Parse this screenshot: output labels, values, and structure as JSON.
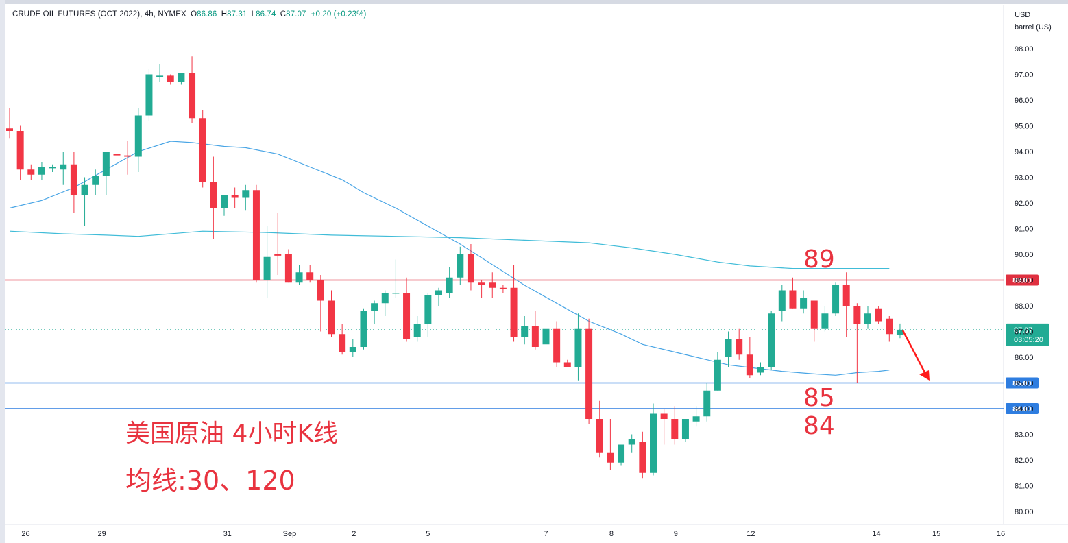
{
  "header": {
    "symbol": "CRUDE OIL FUTURES (OCT 2022), 4h, NYMEX",
    "o_label": "O",
    "o": "86.86",
    "h_label": "H",
    "h": "87.31",
    "l_label": "L",
    "l": "86.74",
    "c_label": "C",
    "c": "87.07",
    "change": "+0.20 (+0.23%)"
  },
  "axis_unit": {
    "currency": "USD",
    "unit": "barrel (US)"
  },
  "price_tag": {
    "value": "87.07",
    "countdown": "03:05:20"
  },
  "annotations": {
    "main_title": "美国原油 4小时K线",
    "ma_text": "均线:30、120",
    "level_89_text": "89",
    "level_85_text": "85",
    "level_84_text": "84"
  },
  "colors": {
    "up": "#22ab94",
    "down": "#f23645",
    "ma30": "#49a5e5",
    "ma120": "#40bcd8",
    "resistance": "#e03040",
    "support": "#2e7de0",
    "annotation_text": "#e8333f"
  },
  "chart_data": {
    "type": "candlestick",
    "ylim": [
      79.5,
      98.5
    ],
    "y_ticks": [
      "80.00",
      "81.00",
      "82.00",
      "83.00",
      "84.00",
      "85.00",
      "86.00",
      "87.00",
      "88.00",
      "89.00",
      "90.00",
      "91.00",
      "92.00",
      "93.00",
      "94.00",
      "95.00",
      "96.00",
      "97.00",
      "98.00"
    ],
    "x_ticks": [
      {
        "label": "26",
        "index": 1.5
      },
      {
        "label": "29",
        "index": 8.6
      },
      {
        "label": "31",
        "index": 20.3
      },
      {
        "label": "Sep",
        "index": 26.1
      },
      {
        "label": "2",
        "index": 32.1
      },
      {
        "label": "5",
        "index": 39.0
      },
      {
        "label": "7",
        "index": 50.0
      },
      {
        "label": "8",
        "index": 56.1
      },
      {
        "label": "9",
        "index": 62.1
      },
      {
        "label": "12",
        "index": 69.1
      },
      {
        "label": "14",
        "index": 80.8
      },
      {
        "label": "15",
        "index": 86.4
      },
      {
        "label": "16",
        "index": 92.4
      }
    ],
    "candles": [
      [
        94.9,
        95.7,
        94.5,
        94.8
      ],
      [
        94.8,
        95.0,
        92.9,
        93.3
      ],
      [
        93.3,
        93.5,
        92.9,
        93.1
      ],
      [
        93.1,
        93.6,
        92.9,
        93.4
      ],
      [
        93.35,
        93.5,
        93.2,
        93.4
      ],
      [
        93.3,
        94.0,
        92.7,
        93.5
      ],
      [
        93.5,
        94.0,
        91.6,
        92.3
      ],
      [
        92.3,
        93.0,
        91.1,
        92.7
      ],
      [
        92.7,
        93.3,
        92.3,
        93.05
      ],
      [
        93.05,
        94.0,
        92.3,
        94.0
      ],
      [
        93.9,
        94.4,
        93.7,
        93.85
      ],
      [
        93.85,
        94.4,
        93.1,
        93.8
      ],
      [
        93.8,
        95.7,
        93.2,
        95.4
      ],
      [
        95.4,
        97.2,
        95.2,
        97.0
      ],
      [
        96.9,
        97.4,
        96.7,
        96.95
      ],
      [
        96.95,
        97.0,
        96.6,
        96.7
      ],
      [
        96.7,
        97.0,
        96.6,
        97.05
      ],
      [
        97.05,
        97.7,
        95.1,
        95.3
      ],
      [
        95.3,
        95.6,
        92.6,
        92.8
      ],
      [
        92.8,
        93.8,
        90.6,
        91.8
      ],
      [
        91.8,
        92.3,
        91.5,
        92.3
      ],
      [
        92.3,
        92.6,
        91.8,
        92.2
      ],
      [
        92.2,
        92.7,
        91.7,
        92.5
      ],
      [
        92.5,
        92.7,
        88.9,
        89.0
      ],
      [
        89.0,
        91.1,
        88.3,
        89.9
      ],
      [
        90.0,
        91.6,
        89.2,
        89.95
      ],
      [
        90.0,
        90.2,
        88.9,
        88.9
      ],
      [
        88.9,
        89.6,
        88.8,
        89.3
      ],
      [
        89.3,
        89.6,
        88.9,
        89.0
      ],
      [
        89.0,
        89.2,
        87.0,
        88.2
      ],
      [
        88.2,
        88.6,
        86.8,
        86.9
      ],
      [
        86.9,
        87.3,
        86.1,
        86.2
      ],
      [
        86.2,
        86.7,
        86.0,
        86.4
      ],
      [
        86.4,
        87.9,
        86.3,
        87.8
      ],
      [
        87.8,
        88.2,
        87.3,
        88.1
      ],
      [
        88.1,
        88.6,
        87.6,
        88.5
      ],
      [
        88.5,
        89.8,
        88.3,
        88.5
      ],
      [
        88.5,
        89.1,
        86.6,
        86.7
      ],
      [
        86.8,
        87.6,
        86.6,
        87.3
      ],
      [
        87.3,
        88.5,
        86.8,
        88.4
      ],
      [
        88.4,
        88.7,
        88.0,
        88.6
      ],
      [
        88.5,
        89.5,
        88.3,
        89.1
      ],
      [
        89.1,
        90.3,
        88.8,
        90.0
      ],
      [
        90.0,
        90.4,
        88.6,
        88.9
      ],
      [
        88.9,
        89.0,
        88.3,
        88.8
      ],
      [
        88.9,
        89.3,
        88.3,
        88.7
      ],
      [
        88.7,
        88.8,
        88.5,
        88.65
      ],
      [
        88.7,
        89.6,
        86.6,
        86.8
      ],
      [
        86.8,
        87.6,
        86.5,
        87.2
      ],
      [
        87.2,
        87.8,
        86.3,
        86.4
      ],
      [
        86.5,
        87.6,
        86.3,
        87.1
      ],
      [
        87.1,
        87.4,
        85.6,
        85.8
      ],
      [
        85.8,
        85.9,
        85.6,
        85.6
      ],
      [
        85.6,
        87.7,
        85.1,
        87.1
      ],
      [
        87.1,
        87.5,
        83.4,
        83.6
      ],
      [
        83.6,
        84.3,
        82.1,
        82.3
      ],
      [
        82.3,
        83.6,
        81.6,
        81.9
      ],
      [
        81.9,
        82.6,
        81.8,
        82.6
      ],
      [
        82.6,
        83.0,
        82.3,
        82.8
      ],
      [
        82.7,
        83.1,
        81.3,
        81.5
      ],
      [
        81.5,
        84.2,
        81.4,
        83.8
      ],
      [
        83.8,
        84.0,
        82.6,
        83.6
      ],
      [
        83.6,
        84.1,
        82.6,
        82.8
      ],
      [
        82.8,
        83.6,
        82.7,
        83.6
      ],
      [
        83.5,
        84.1,
        83.3,
        83.7
      ],
      [
        83.7,
        85.0,
        83.5,
        84.7
      ],
      [
        84.7,
        86.2,
        84.7,
        85.9
      ],
      [
        86.0,
        87.0,
        85.6,
        86.7
      ],
      [
        86.7,
        87.1,
        85.9,
        86.1
      ],
      [
        86.1,
        86.8,
        85.2,
        85.3
      ],
      [
        85.4,
        85.8,
        85.3,
        85.6
      ],
      [
        85.6,
        87.8,
        85.5,
        87.7
      ],
      [
        87.8,
        88.8,
        87.4,
        88.6
      ],
      [
        88.6,
        89.1,
        87.9,
        87.9
      ],
      [
        87.9,
        88.6,
        87.7,
        88.3
      ],
      [
        88.2,
        88.2,
        86.6,
        87.1
      ],
      [
        87.1,
        88.0,
        87.0,
        87.7
      ],
      [
        87.7,
        88.9,
        87.6,
        88.8
      ],
      [
        88.8,
        89.3,
        86.8,
        88.0
      ],
      [
        88.0,
        88.1,
        85.0,
        87.3
      ],
      [
        87.3,
        88.0,
        87.1,
        87.7
      ],
      [
        87.9,
        88.0,
        87.3,
        87.4
      ],
      [
        87.5,
        87.6,
        86.6,
        86.9
      ],
      [
        86.86,
        87.31,
        86.74,
        87.07
      ]
    ],
    "ma30": [
      [
        0,
        91.8
      ],
      [
        3,
        92.1
      ],
      [
        6,
        92.6
      ],
      [
        9,
        93.3
      ],
      [
        12,
        94.0
      ],
      [
        15,
        94.4
      ],
      [
        17,
        94.35
      ],
      [
        20,
        94.2
      ],
      [
        22,
        94.15
      ],
      [
        25,
        93.9
      ],
      [
        28,
        93.4
      ],
      [
        31,
        92.9
      ],
      [
        33,
        92.4
      ],
      [
        36,
        91.8
      ],
      [
        39,
        91.1
      ],
      [
        42,
        90.4
      ],
      [
        45,
        89.6
      ],
      [
        48,
        88.8
      ],
      [
        51,
        88.1
      ],
      [
        54,
        87.4
      ],
      [
        57,
        86.9
      ],
      [
        59,
        86.5
      ],
      [
        62,
        86.2
      ],
      [
        65,
        85.9
      ],
      [
        67,
        85.7
      ],
      [
        69,
        85.6
      ],
      [
        72,
        85.45
      ],
      [
        75,
        85.35
      ],
      [
        77,
        85.3
      ],
      [
        79,
        85.4
      ],
      [
        81,
        85.45
      ],
      [
        82,
        85.5
      ]
    ],
    "ma120": [
      [
        0,
        90.9
      ],
      [
        5,
        90.8
      ],
      [
        9,
        90.75
      ],
      [
        12,
        90.7
      ],
      [
        15,
        90.8
      ],
      [
        18,
        90.9
      ],
      [
        24,
        90.85
      ],
      [
        30,
        90.75
      ],
      [
        36,
        90.7
      ],
      [
        42,
        90.65
      ],
      [
        48,
        90.55
      ],
      [
        54,
        90.45
      ],
      [
        58,
        90.25
      ],
      [
        62,
        90.0
      ],
      [
        66,
        89.7
      ],
      [
        69,
        89.55
      ],
      [
        73,
        89.45
      ],
      [
        78,
        89.45
      ],
      [
        82,
        89.45
      ]
    ],
    "levels": [
      {
        "value": 89.0,
        "label": "89.00",
        "kind": "resistance"
      },
      {
        "value": 85.0,
        "label": "85.00",
        "kind": "support"
      },
      {
        "value": 84.0,
        "label": "84.00",
        "kind": "support"
      }
    ]
  }
}
